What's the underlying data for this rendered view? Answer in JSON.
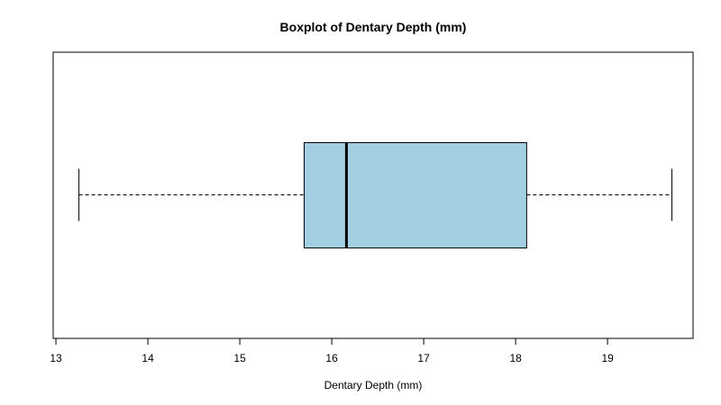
{
  "chart_data": {
    "type": "boxplot",
    "orientation": "horizontal",
    "title": "Boxplot of Dentary Depth (mm)",
    "xlabel": "Dentary Depth (mm)",
    "ylabel": "",
    "xlim": [
      12.97,
      19.93
    ],
    "x_ticks": [
      13,
      14,
      15,
      16,
      17,
      18,
      19
    ],
    "x_tick_labels": [
      "13",
      "14",
      "15",
      "16",
      "17",
      "18",
      "19"
    ],
    "box_color": "#a2d0e2",
    "box": {
      "whisker_low": 13.25,
      "q1": 15.7,
      "median": 16.16,
      "q3": 18.12,
      "whisker_high": 19.7
    },
    "grid": false,
    "legend": "none"
  }
}
